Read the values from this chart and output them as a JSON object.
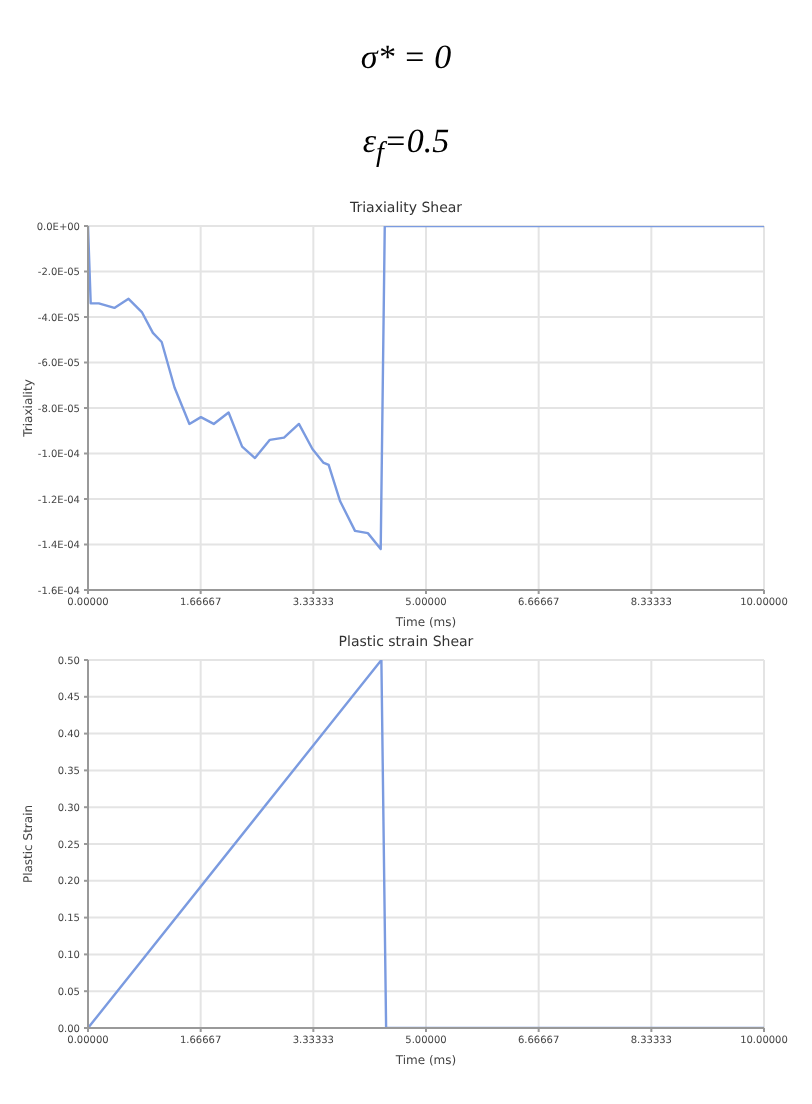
{
  "chart_data": [
    {
      "type": "line",
      "title": "Triaxiality Shear",
      "xlabel": "Time (ms)",
      "ylabel": "Triaxiality",
      "annotations": [
        "σ* = 0",
        "ε$_{f}$=0.5"
      ],
      "x": [
        0,
        0.04,
        0.16,
        0.39,
        0.6,
        0.8,
        0.96,
        1.09,
        1.28,
        1.5,
        1.67,
        1.86,
        2.08,
        2.28,
        2.47,
        2.69,
        2.9,
        3.12,
        3.32,
        3.48,
        3.56,
        3.73,
        3.95,
        4.14,
        4.33,
        4.39,
        10
      ],
      "series": [
        {
          "color": "#7b9be0",
          "values": [
            0,
            -3.4e-05,
            -3.4e-05,
            -3.6e-05,
            -3.2e-05,
            -3.8e-05,
            -4.7e-05,
            -5.1e-05,
            -7.1e-05,
            -8.7e-05,
            -8.4e-05,
            -8.7e-05,
            -8.2e-05,
            -9.7e-05,
            -0.000102,
            -9.4e-05,
            -9.3e-05,
            -8.7e-05,
            -9.8e-05,
            -0.000104,
            -0.000105,
            -0.000121,
            -0.000134,
            -0.000135,
            -0.000142,
            0,
            0
          ]
        }
      ],
      "xlim": [
        0,
        10
      ],
      "xticks": [
        {
          "value": 0,
          "label": "0.00000"
        },
        {
          "value": 1.66667,
          "label": "1.66667"
        },
        {
          "value": 3.33333,
          "label": "3.33333"
        },
        {
          "value": 5,
          "label": "5.00000"
        },
        {
          "value": 6.66667,
          "label": "6.66667"
        },
        {
          "value": 8.33333,
          "label": "8.33333"
        },
        {
          "value": 10,
          "label": "10.00000"
        }
      ],
      "ylim": [
        -0.00016,
        0
      ],
      "yticks": [
        {
          "value": 0,
          "label": "0.0E+00"
        },
        {
          "value": -2e-05,
          "label": "-2.0E-05"
        },
        {
          "value": -4e-05,
          "label": "-4.0E-05"
        },
        {
          "value": -6e-05,
          "label": "-6.0E-05"
        },
        {
          "value": -8e-05,
          "label": "-8.0E-05"
        },
        {
          "value": -0.0001,
          "label": "-1.0E-04"
        },
        {
          "value": -0.00012,
          "label": "-1.2E-04"
        },
        {
          "value": -0.00014,
          "label": "-1.4E-04"
        },
        {
          "value": -0.00016,
          "label": "-1.6E-04"
        }
      ],
      "grid": true,
      "marker": "none"
    },
    {
      "type": "line",
      "title": "Plastic strain Shear",
      "xlabel": "Time (ms)",
      "ylabel": "Plastic Strain",
      "x": [
        0,
        4.34,
        4.41,
        10
      ],
      "series": [
        {
          "color": "#7b9be0",
          "values": [
            0,
            0.5,
            0,
            0
          ]
        }
      ],
      "xlim": [
        0,
        10
      ],
      "xticks": [
        {
          "value": 0,
          "label": "0.00000"
        },
        {
          "value": 1.66667,
          "label": "1.66667"
        },
        {
          "value": 3.33333,
          "label": "3.33333"
        },
        {
          "value": 5,
          "label": "5.00000"
        },
        {
          "value": 6.66667,
          "label": "6.66667"
        },
        {
          "value": 8.33333,
          "label": "8.33333"
        },
        {
          "value": 10,
          "label": "10.00000"
        }
      ],
      "ylim": [
        0,
        0.5
      ],
      "yticks": [
        {
          "value": 0,
          "label": "0.00"
        },
        {
          "value": 0.05,
          "label": "0.05"
        },
        {
          "value": 0.1,
          "label": "0.10"
        },
        {
          "value": 0.15,
          "label": "0.15"
        },
        {
          "value": 0.2,
          "label": "0.20"
        },
        {
          "value": 0.25,
          "label": "0.25"
        },
        {
          "value": 0.3,
          "label": "0.30"
        },
        {
          "value": 0.35,
          "label": "0.35"
        },
        {
          "value": 0.4,
          "label": "0.40"
        },
        {
          "value": 0.45,
          "label": "0.45"
        },
        {
          "value": 0.5,
          "label": "0.50"
        }
      ],
      "grid": true,
      "marker": "none"
    }
  ]
}
